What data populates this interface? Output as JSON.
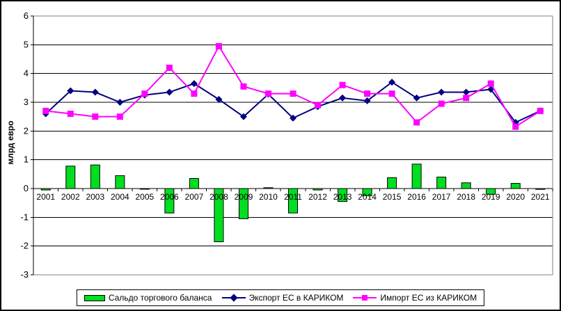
{
  "chart_data": {
    "type": "combo",
    "title": "",
    "ylabel": "млрд евро",
    "ylim": [
      -3,
      6
    ],
    "yticks": [
      6,
      5,
      4,
      3,
      2,
      1,
      0,
      -1,
      -2,
      -3
    ],
    "grid": true,
    "legend_position": "bottom",
    "categories": [
      "2001",
      "2002",
      "2003",
      "2004",
      "2005",
      "2006",
      "2007",
      "2008",
      "2009",
      "2010",
      "2011",
      "2012",
      "2013",
      "2014",
      "2015",
      "2016",
      "2017",
      "2018",
      "2019",
      "2020",
      "2021"
    ],
    "series": [
      {
        "name": "Сальдо торгового баланса",
        "type": "bar",
        "color": "#00de20",
        "border_color": "#000000",
        "values": [
          -0.05,
          0.78,
          0.82,
          0.45,
          0.0,
          -0.85,
          0.35,
          -1.85,
          -1.05,
          0.03,
          -0.85,
          -0.05,
          -0.45,
          -0.25,
          0.38,
          0.85,
          0.4,
          0.2,
          -0.2,
          0.18,
          -0.03
        ]
      },
      {
        "name": "Экспорт ЕС в КАРИКОМ",
        "type": "line",
        "marker": "diamond",
        "color": "#000080",
        "values": [
          2.6,
          3.4,
          3.35,
          3.0,
          3.25,
          3.35,
          3.65,
          3.1,
          2.5,
          3.28,
          2.45,
          2.85,
          3.15,
          3.05,
          3.7,
          3.15,
          3.35,
          3.35,
          3.45,
          2.3,
          2.7
        ]
      },
      {
        "name": "Импорт ЕС из КАРИКОМ",
        "type": "line",
        "marker": "square",
        "color": "#ff00ff",
        "values": [
          2.7,
          2.6,
          2.5,
          2.5,
          3.3,
          4.2,
          3.3,
          4.95,
          3.55,
          3.3,
          3.3,
          2.9,
          3.6,
          3.3,
          3.3,
          2.3,
          2.95,
          3.15,
          3.65,
          2.15,
          2.7
        ]
      }
    ],
    "frame_color": "#808080",
    "grid_color": "#000000"
  }
}
